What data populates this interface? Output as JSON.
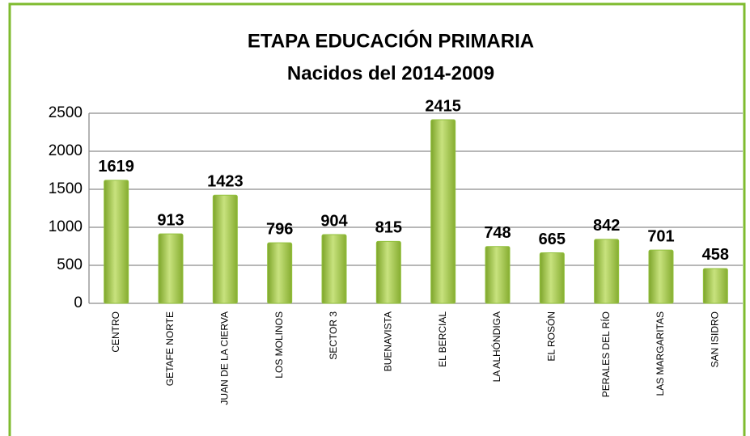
{
  "chart_data": {
    "type": "bar",
    "title": "ETAPA EDUCACIÓN PRIMARIA",
    "subtitle": "Nacidos del 2014-2009",
    "categories": [
      "CENTRO",
      "GETAFE NORTE",
      "JUAN DE LA CIERVA",
      "LOS MOLINOS",
      "SECTOR 3",
      "BUENAVISTA",
      "EL BERCIAL",
      "LA ALHÓNDIGA",
      "EL ROSÓN",
      "PERALES DEL RÍO",
      "LAS MARGARITAS",
      "SAN ISIDRO"
    ],
    "values": [
      1619,
      913,
      1423,
      796,
      904,
      815,
      2415,
      748,
      665,
      842,
      701,
      458
    ],
    "color": "#92c13d",
    "ylim": [
      0,
      2500
    ],
    "yticks": [
      0,
      500,
      1000,
      1500,
      2000,
      2500
    ],
    "grid": true
  }
}
